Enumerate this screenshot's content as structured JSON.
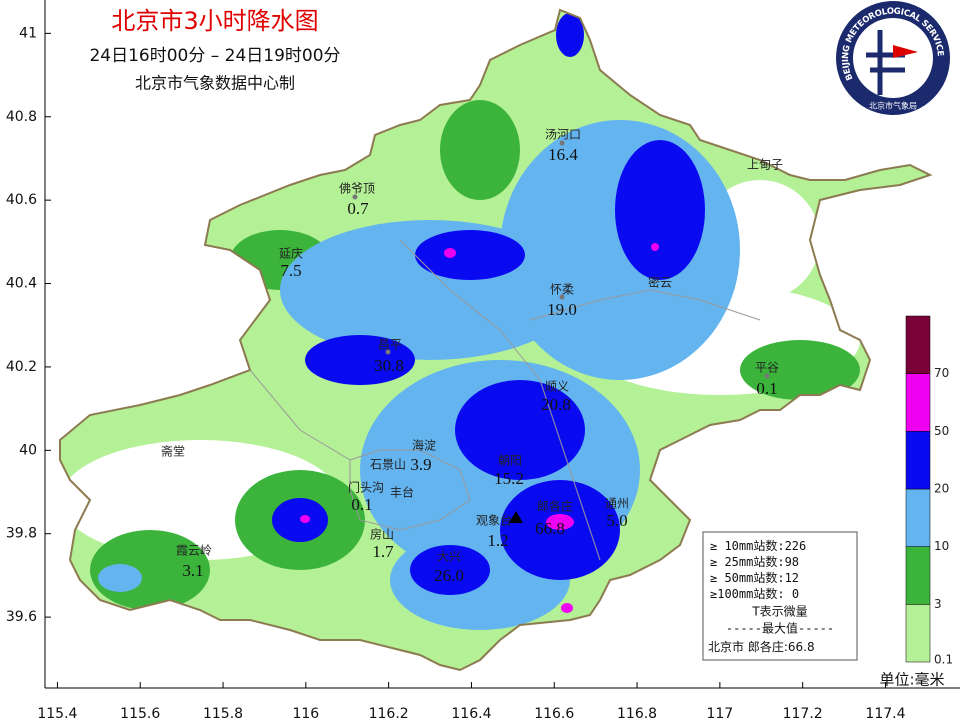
{
  "header": {
    "title": "北京市3小时降水图",
    "period": "24日16时00分 – 24日19时00分",
    "producer": "北京市气象数据中心制"
  },
  "logo": {
    "text": "BEIJING METEOROLOGICAL SERVICE",
    "subtext": "北京市气象局"
  },
  "axes": {
    "xlim": [
      115.37,
      117.58
    ],
    "ylim": [
      39.43,
      41.08
    ],
    "xticks": [
      115.4,
      115.6,
      115.8,
      116,
      116.2,
      116.4,
      116.6,
      116.8,
      117,
      117.2,
      117.4
    ],
    "yticks": [
      39.6,
      39.8,
      40,
      40.2,
      40.4,
      40.6,
      40.8,
      41
    ]
  },
  "stations": [
    {
      "name": "汤河口",
      "value": "16.4"
    },
    {
      "name": "上甸子"
    },
    {
      "name": "佛爷顶",
      "value": "0.7"
    },
    {
      "name": "延庆",
      "value": "7.5"
    },
    {
      "name": "怀柔",
      "value": "19.0"
    },
    {
      "name": "密云"
    },
    {
      "name": "昌平",
      "value": "30.8"
    },
    {
      "name": "平谷",
      "value": "0.1"
    },
    {
      "name": "顺义",
      "value": "20.8"
    },
    {
      "name": "斋堂"
    },
    {
      "name": "海淀",
      "value": "3.9"
    },
    {
      "name": "朝阳",
      "value": "15.2"
    },
    {
      "name": "石景山"
    },
    {
      "name": "门头沟",
      "value": "0.1"
    },
    {
      "name": "丰台"
    },
    {
      "name": "郎各庄",
      "value": "66.8"
    },
    {
      "name": "通州",
      "value": "5.0"
    },
    {
      "name": "观象台",
      "value": "1.2"
    },
    {
      "name": "房山",
      "value": "1.7"
    },
    {
      "name": "霞云岭",
      "value": "3.1"
    },
    {
      "name": "大兴",
      "value": "26.0"
    }
  ],
  "legend": {
    "levels": [
      0.1,
      3,
      10,
      20,
      50,
      70
    ],
    "colors": [
      "#b4f096",
      "#3cb43c",
      "#64b4f0",
      "#0a0af0",
      "#f000f0",
      "#7a0038"
    ],
    "unit": "单位:毫米"
  },
  "stats": {
    "items": [
      {
        "label": "≥ 10mm站数:",
        "count": 226
      },
      {
        "label": "≥ 25mm站数:",
        "count": 98
      },
      {
        "label": "≥ 50mm站数:",
        "count": 12
      },
      {
        "label": "≥100mm站数: ",
        "count": 0
      }
    ],
    "note": "T表示微量",
    "max_title": "-----最大值-----",
    "max_label": "北京市 郎各庄:",
    "max_value": 66.8
  }
}
